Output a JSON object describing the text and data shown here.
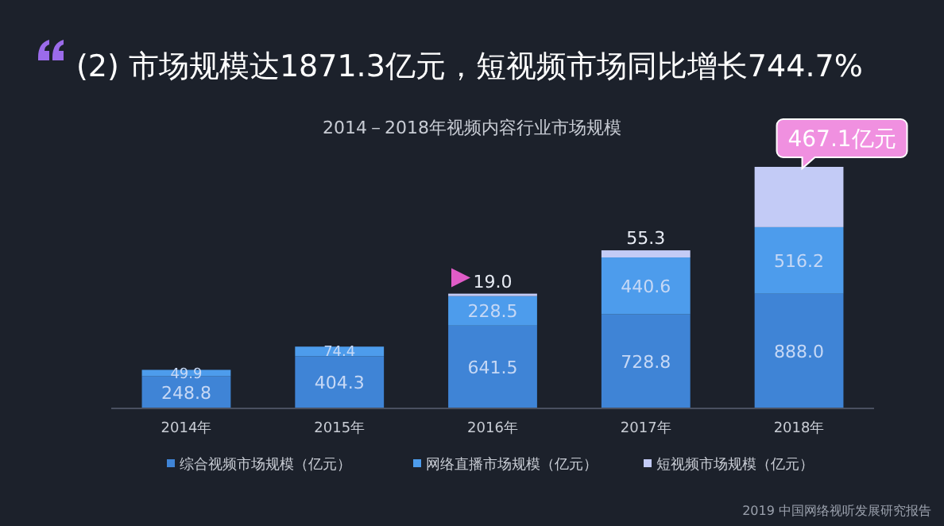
{
  "chart_data": {
    "type": "bar",
    "title": "(2) 市场规模达1871.3亿元，短视频市场同比增长744.7%",
    "subtitle": "2014－2018年视频内容行业市场规模",
    "categories": [
      "2014年",
      "2015年",
      "2016年",
      "2017年",
      "2018年"
    ],
    "stacked": true,
    "data_labels": true,
    "legend": "bottom",
    "series": [
      {
        "name": "综合视频市场规模（亿元）",
        "color": "#3f84d6",
        "values": [
          248.8,
          404.3,
          641.5,
          728.8,
          888.0
        ],
        "value_labels": [
          "248.8",
          "404.3",
          "641.5",
          "728.8",
          "888.0"
        ]
      },
      {
        "name": "网络直播市场规模（亿元）",
        "color": "#4d9cec",
        "values": [
          49.9,
          74.4,
          228.5,
          440.6,
          516.2
        ]
      },
      {
        "name": "短视频市场规模（亿元）",
        "color": "#c3cbf6",
        "values": [
          null,
          null,
          19.0,
          55.3,
          467.1
        ],
        "value_labels": [
          null,
          null,
          "19.0",
          "55.3",
          "467.1亿元"
        ]
      }
    ],
    "annotations": [
      "2019 中国网络视听发展研究报告"
    ]
  }
}
